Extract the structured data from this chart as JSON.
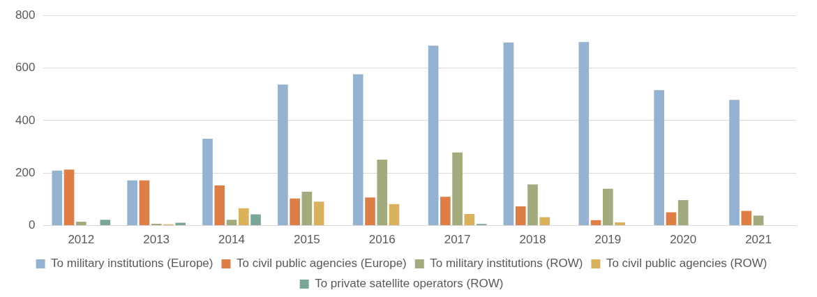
{
  "chart_data": {
    "type": "bar",
    "categories": [
      "2012",
      "2013",
      "2014",
      "2015",
      "2016",
      "2017",
      "2018",
      "2019",
      "2020",
      "2021"
    ],
    "series": [
      {
        "name": "To military institutions (Europe)",
        "color": "#95b3d1",
        "values": [
          209,
          172,
          331,
          537,
          576,
          685,
          697,
          699,
          516,
          479
        ]
      },
      {
        "name": "To civil public agencies (Europe)",
        "color": "#dd7e47",
        "values": [
          213,
          172,
          153,
          103,
          107,
          110,
          73,
          21,
          51,
          56
        ]
      },
      {
        "name": "To military institutions (ROW)",
        "color": "#a3aa7d",
        "values": [
          15,
          7,
          22,
          129,
          251,
          278,
          157,
          140,
          97,
          38
        ]
      },
      {
        "name": "To civil public agencies (ROW)",
        "color": "#d8b25c",
        "values": [
          0,
          5,
          66,
          91,
          82,
          44,
          32,
          12,
          null,
          0
        ]
      },
      {
        "name": "To private satellite operators (ROW)",
        "color": "#78a699",
        "values": [
          22,
          11,
          43,
          0,
          0,
          6,
          0,
          0,
          0,
          0
        ]
      }
    ],
    "ylim": [
      0,
      800
    ],
    "yticks": [
      0,
      200,
      400,
      600,
      800
    ],
    "grid": "y",
    "legend": "bottom"
  }
}
